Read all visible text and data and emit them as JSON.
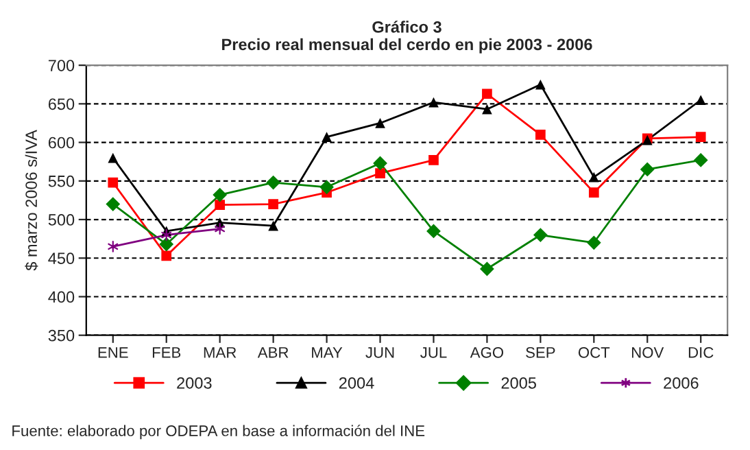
{
  "chart_data": {
    "type": "line",
    "title": "Gráfico 3\nPrecio real mensual del cerdo en pie 2003 - 2006",
    "ylabel": "$ marzo 2006 s/IVA",
    "categories": [
      "ENE",
      "FEB",
      "MAR",
      "ABR",
      "MAY",
      "JUN",
      "JUL",
      "AGO",
      "SEP",
      "OCT",
      "NOV",
      "DIC"
    ],
    "series": [
      {
        "name": "2003",
        "color": "#ff0000",
        "marker": "square",
        "values": [
          548,
          453,
          519,
          520,
          535,
          560,
          577,
          663,
          610,
          535,
          605,
          607
        ]
      },
      {
        "name": "2004",
        "color": "#000000",
        "marker": "triangle",
        "values": [
          580,
          485,
          496,
          492,
          607,
          625,
          652,
          643,
          675,
          555,
          603,
          655
        ]
      },
      {
        "name": "2005",
        "color": "#008000",
        "marker": "diamond",
        "values": [
          520,
          468,
          532,
          548,
          542,
          573,
          485,
          436,
          480,
          470,
          565,
          577
        ]
      },
      {
        "name": "2006",
        "color": "#800080",
        "marker": "cross",
        "values": [
          465,
          480,
          488,
          null,
          null,
          null,
          null,
          null,
          null,
          null,
          null,
          null
        ]
      }
    ],
    "ylim": [
      350,
      700
    ],
    "yticks": [
      350,
      400,
      450,
      500,
      550,
      600,
      650,
      700
    ],
    "grid": "y",
    "line_style": "solid",
    "legend": "bottom",
    "annotations": [
      "Fuente: elaborado por ODEPA en base a información del INE"
    ]
  }
}
